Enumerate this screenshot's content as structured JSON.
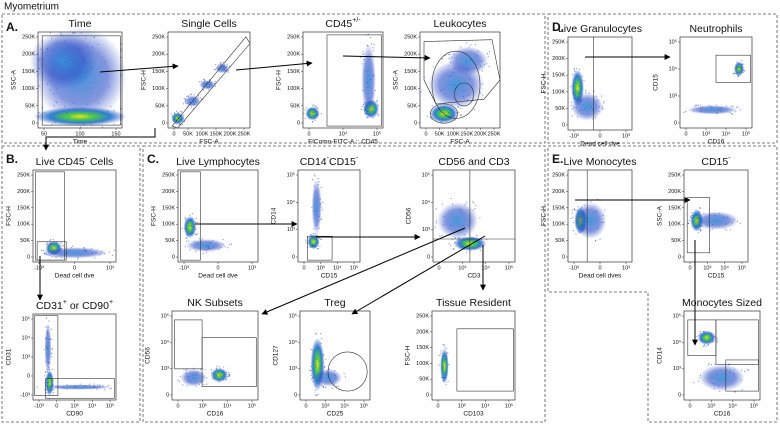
{
  "header": {
    "title": "Myometrium"
  },
  "sections": [
    "A.",
    "B.",
    "C.",
    "D.",
    "E."
  ],
  "plots": [
    {
      "title": [
        {
          "text": "Time"
        }
      ],
      "x_label": "Time",
      "y_label": "SSC-A",
      "x_ticks": [
        "50",
        "100",
        "150"
      ],
      "y_ticks": [
        "250K",
        "200K",
        "150K",
        "100K",
        "50K",
        "0"
      ]
    },
    {
      "title": [
        {
          "text": "Single Cells"
        }
      ],
      "x_label": "FSC-A",
      "y_label": "FSC-H",
      "x_ticks": [
        "0",
        "50K",
        "100K",
        "150K",
        "200K",
        "250K"
      ],
      "y_ticks": [
        "250K",
        "200K",
        "150K",
        "100K",
        "50K",
        "0"
      ]
    },
    {
      "title": [
        {
          "text": "CD45"
        },
        {
          "sup": "+/-"
        }
      ],
      "x_label": "FIComo-FITC-A :: CD45",
      "y_label": "FSC-H",
      "x_ticks": [
        "0",
        "10⁴",
        "10⁵"
      ],
      "y_ticks": [
        "250K",
        "200K",
        "150K",
        "100K",
        "50K",
        "0"
      ]
    },
    {
      "title": [
        {
          "text": "Leukocytes"
        }
      ],
      "x_label": "FSC-A",
      "y_label": "SSC-A",
      "x_ticks": [
        "0",
        "50K",
        "100K",
        "150K",
        "200K",
        "250K"
      ],
      "y_ticks": [
        "250K",
        "200K",
        "150K",
        "100K",
        "50K",
        "0"
      ]
    },
    {
      "title": [
        {
          "text": "Live Granulocytes"
        }
      ],
      "x_label": "Dead cell dve",
      "y_label": "FSC-H",
      "x_ticks": [
        "-10³",
        "0",
        "10³"
      ],
      "y_ticks": [
        "250K",
        "200K",
        "150K",
        "100K",
        "50K",
        "0"
      ]
    },
    {
      "title": [
        {
          "text": "Neutrophils"
        }
      ],
      "x_label": "CD16",
      "y_label": "CD15",
      "x_ticks": [
        "0",
        "10³",
        "10⁴",
        "10⁵"
      ],
      "y_ticks": [
        "10⁵",
        "10⁴",
        "10³",
        "0"
      ]
    },
    {
      "title": [
        {
          "text": "Live CD45"
        },
        {
          "sup": "-"
        },
        {
          "text": " Cells"
        }
      ],
      "x_label": "Dead cell dve",
      "y_label": "FSC-H",
      "x_ticks": [
        "-10³",
        "0",
        "10³"
      ],
      "y_ticks": [
        "250K",
        "200K",
        "150K",
        "100K",
        "50K",
        "0"
      ]
    },
    {
      "title": [
        {
          "text": "CD31"
        },
        {
          "sup": "+"
        },
        {
          "text": " or CD90"
        },
        {
          "sup": "+"
        }
      ],
      "x_label": "CD90",
      "y_label": "CD31",
      "x_ticks": [
        "-10³",
        "0",
        "10³",
        "10⁴",
        "10⁵"
      ],
      "y_ticks": [
        "10⁵",
        "10⁴",
        "10³",
        "0",
        "-10³"
      ]
    },
    {
      "title": [
        {
          "text": "Live Lymphocytes"
        }
      ],
      "x_label": "Dead cell dve",
      "y_label": "FSC-H",
      "x_ticks": [
        "-10³",
        "0",
        "10³"
      ],
      "y_ticks": [
        "250K",
        "200K",
        "150K",
        "100K",
        "50K",
        "0"
      ]
    },
    {
      "title": [
        {
          "text": "CD14"
        },
        {
          "sup": "-"
        },
        {
          "text": "CD15"
        },
        {
          "sup": "-"
        }
      ],
      "x_label": "CD15",
      "y_label": "CD14",
      "x_ticks": [
        "0",
        "10³",
        "10⁴",
        "10⁵"
      ],
      "y_ticks": [
        "10⁵",
        "10⁴",
        "10³",
        "0"
      ]
    },
    {
      "title": [
        {
          "text": "CD56 and CD3"
        }
      ],
      "x_label": "CD3",
      "y_label": "CD56",
      "x_ticks": [
        "0",
        "10³",
        "10⁴",
        "10⁵"
      ],
      "y_ticks": [
        "10⁵",
        "10⁴",
        "10³",
        "0"
      ]
    },
    {
      "title": [
        {
          "text": "NK Subsets"
        }
      ],
      "x_label": "CD16",
      "y_label": "CD56",
      "x_ticks": [
        "0",
        "10³",
        "10⁴",
        "10⁵"
      ],
      "y_ticks": [
        "10⁵",
        "10⁴",
        "10³",
        "0"
      ]
    },
    {
      "title": [
        {
          "text": "Treg"
        }
      ],
      "x_label": "CD25",
      "y_label": "CD127",
      "x_ticks": [
        "0",
        "10³",
        "10⁴",
        "10⁵"
      ],
      "y_ticks": [
        "10⁵",
        "10⁴",
        "10³",
        "0"
      ]
    },
    {
      "title": [
        {
          "text": "Tissue Resident"
        }
      ],
      "x_label": "CD103",
      "y_label": "FSC-H",
      "x_ticks": [
        "0",
        "10³",
        "10⁴",
        "10⁵"
      ],
      "y_ticks": [
        "250K",
        "200K",
        "150K",
        "100K",
        "50K",
        "0"
      ]
    },
    {
      "title": [
        {
          "text": "Live Monocytes"
        }
      ],
      "x_label": "Dead cell dves",
      "y_label": "FSC-H",
      "x_ticks": [
        "-10³",
        "0",
        "10³"
      ],
      "y_ticks": [
        "250K",
        "200K",
        "150K",
        "100K",
        "50K",
        "0"
      ]
    },
    {
      "title": [
        {
          "text": "CD15"
        },
        {
          "sup": "-"
        }
      ],
      "x_label": "CD15",
      "y_label": "SSC-A",
      "x_ticks": [
        "0",
        "10³",
        "10⁴",
        "10⁵"
      ],
      "y_ticks": [
        "250K",
        "200K",
        "150K",
        "100K",
        "50K",
        "0"
      ]
    },
    {
      "title": [
        {
          "text": "Monocytes Sized"
        }
      ],
      "x_label": "CD16",
      "y_label": "CD14",
      "x_ticks": [
        "0",
        "10³",
        "10⁴",
        "10⁵"
      ],
      "y_ticks": [
        "10⁵",
        "10⁴",
        "10³",
        "0"
      ]
    }
  ]
}
